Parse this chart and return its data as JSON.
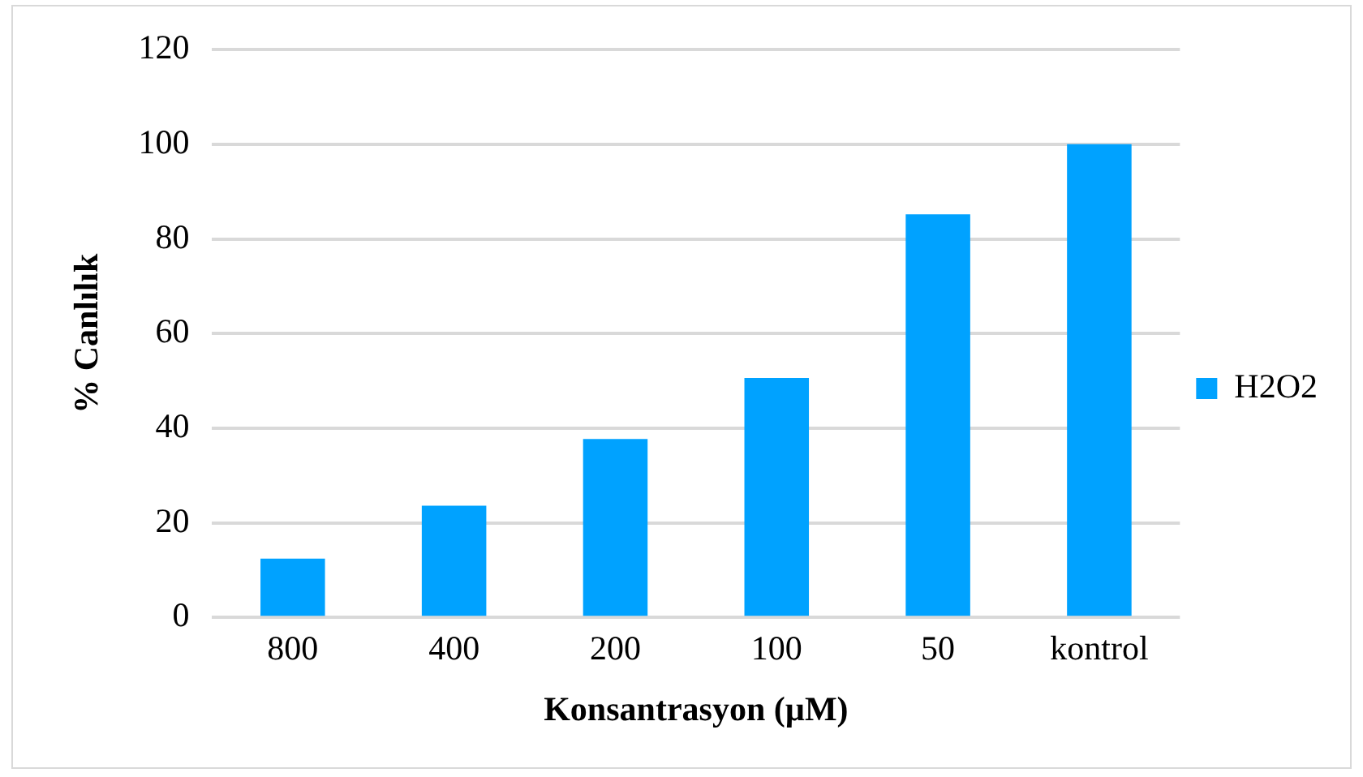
{
  "chart_data": {
    "type": "bar",
    "xlabel": "Konsantrasyon (µM)",
    "ylabel": "% Canlılık",
    "categories": [
      "800",
      "400",
      "200",
      "100",
      "50",
      "kontrol"
    ],
    "series": [
      {
        "name": "H2O2",
        "color": "#00a2ff",
        "values": [
          12.4,
          23.6,
          37.7,
          50.6,
          85.2,
          100
        ]
      }
    ],
    "ylim": [
      0,
      120
    ],
    "yticks": [
      0,
      20,
      40,
      60,
      80,
      100,
      120
    ],
    "grid": "y",
    "legend": "right"
  }
}
